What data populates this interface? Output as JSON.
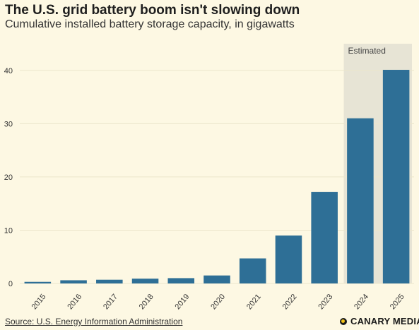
{
  "header": {
    "title": "The U.S. grid battery boom isn't slowing down",
    "subtitle": "Cumulative installed battery storage capacity, in gigawatts"
  },
  "footer": {
    "source": "Source: U.S. Energy Information Administration",
    "brand": "CANARY MEDIA"
  },
  "colors": {
    "background": "#fdf8e3",
    "bar": "#2e6f96",
    "estimated_band": "#e7e4d5",
    "grid": "#ece6cc"
  },
  "chart_data": {
    "type": "bar",
    "categories": [
      "2015",
      "2016",
      "2017",
      "2018",
      "2019",
      "2020",
      "2021",
      "2022",
      "2023",
      "2024",
      "2025"
    ],
    "values": [
      0.3,
      0.6,
      0.7,
      0.9,
      1.0,
      1.5,
      4.7,
      9.0,
      17.2,
      31.0,
      40.1
    ],
    "ylim": [
      0,
      45
    ],
    "yticks": [
      "0",
      "10",
      "20",
      "30",
      "40"
    ],
    "ytick_values": [
      0,
      10,
      20,
      30,
      40
    ],
    "grid": true,
    "estimated": {
      "label": "Estimated",
      "from": "2024",
      "to": "2025"
    }
  }
}
